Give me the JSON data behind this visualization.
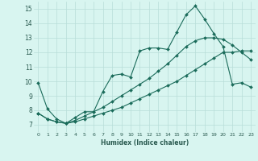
{
  "xlabel": "Humidex (Indice chaleur)",
  "background_color": "#d8f5f0",
  "grid_color": "#b8ddd8",
  "line_color": "#1a6b5a",
  "xlim": [
    -0.5,
    23.5
  ],
  "ylim": [
    6.5,
    15.5
  ],
  "xticks": [
    0,
    1,
    2,
    3,
    4,
    5,
    6,
    7,
    8,
    9,
    10,
    11,
    12,
    13,
    14,
    15,
    16,
    17,
    18,
    19,
    20,
    21,
    22,
    23
  ],
  "yticks": [
    7,
    8,
    9,
    10,
    11,
    12,
    13,
    14,
    15
  ],
  "series1_x": [
    0,
    1,
    2,
    3,
    4,
    5,
    6,
    7,
    8,
    9,
    10,
    11,
    12,
    13,
    14,
    15,
    16,
    17,
    18,
    19,
    20,
    21,
    22,
    23
  ],
  "series1_y": [
    9.9,
    8.1,
    7.4,
    7.1,
    7.5,
    7.9,
    7.9,
    9.3,
    10.4,
    10.5,
    10.3,
    12.1,
    12.3,
    12.3,
    12.2,
    13.4,
    14.6,
    15.2,
    14.3,
    13.3,
    12.4,
    9.8,
    9.9,
    9.6
  ],
  "series2_x": [
    0,
    1,
    2,
    3,
    4,
    5,
    6,
    7,
    8,
    9,
    10,
    11,
    12,
    13,
    14,
    15,
    16,
    17,
    18,
    19,
    20,
    21,
    22,
    23
  ],
  "series2_y": [
    7.8,
    7.4,
    7.2,
    7.1,
    7.2,
    7.4,
    7.6,
    7.8,
    8.0,
    8.2,
    8.5,
    8.8,
    9.1,
    9.4,
    9.7,
    10.0,
    10.4,
    10.8,
    11.2,
    11.6,
    12.0,
    12.0,
    12.1,
    12.1
  ],
  "series3_x": [
    0,
    1,
    2,
    3,
    4,
    5,
    6,
    7,
    8,
    9,
    10,
    11,
    12,
    13,
    14,
    15,
    16,
    17,
    18,
    19,
    20,
    21,
    22,
    23
  ],
  "series3_y": [
    7.8,
    7.4,
    7.2,
    7.1,
    7.3,
    7.6,
    7.9,
    8.2,
    8.6,
    9.0,
    9.4,
    9.8,
    10.2,
    10.7,
    11.2,
    11.8,
    12.4,
    12.8,
    13.0,
    13.0,
    12.9,
    12.5,
    12.0,
    11.5
  ]
}
